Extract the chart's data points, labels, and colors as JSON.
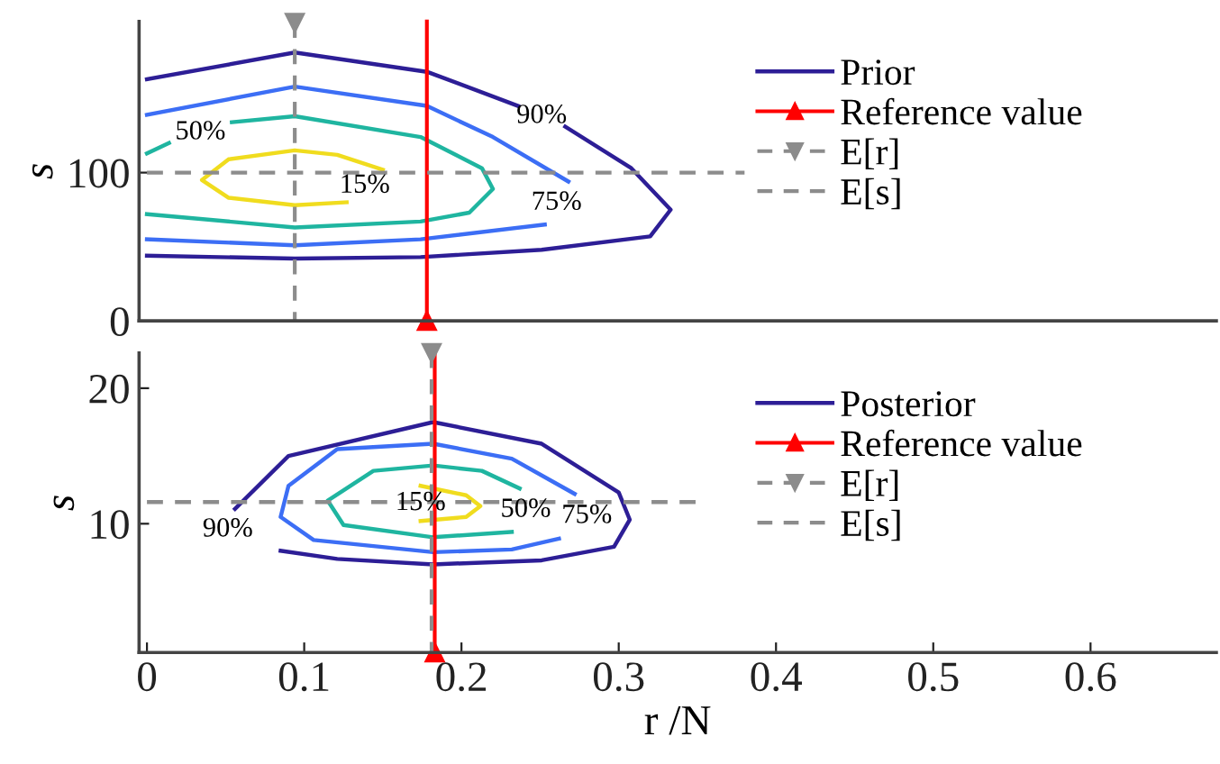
{
  "chart_data": [
    {
      "type": "line",
      "ylabel": "s",
      "xlim": [
        -0.005,
        0.68
      ],
      "ylim": [
        0,
        202
      ],
      "yticks": [
        0,
        100
      ],
      "tick_labels": "y",
      "grid": false,
      "legend": "right",
      "series": [
        {
          "name": "Prior",
          "color": "#2d1e96",
          "x": [
            0,
            0.094,
            0.178,
            0.236,
            null,
            0.266,
            0.308,
            0.333,
            0.32,
            0.251,
            0.174,
            0.094,
            0
          ],
          "values": [
            163,
            181,
            168,
            145,
            null,
            131,
            103,
            75,
            57,
            48,
            43,
            42,
            44
          ]
        },
        {
          "color": "#3c6ef5",
          "x": [
            0,
            0.094,
            0.178,
            0.22,
            0.268,
            null,
            0.253,
            0.174,
            0.094,
            0
          ],
          "values": [
            139,
            158,
            145,
            124,
            94,
            null,
            65,
            55,
            51,
            55
          ]
        },
        {
          "color": "#1fb5a0",
          "x": [
            0,
            0.014,
            null,
            0.054,
            0.094,
            0.174,
            0.213,
            0.22,
            0.205,
            0.174,
            0.094,
            0
          ],
          "values": [
            113,
            120,
            null,
            134,
            138,
            124,
            103,
            89,
            73,
            67,
            63,
            72
          ]
        },
        {
          "color": "#f0dc1e",
          "x": [
            0.15,
            0.121,
            0.094,
            0.052,
            0.035,
            0.052,
            0.094,
            0.127
          ],
          "values": [
            102,
            112,
            115,
            109,
            95,
            83,
            78,
            80
          ]
        },
        {
          "name": "Reference value",
          "color": "#ff0000",
          "marker": "triangle",
          "line_style": "solid",
          "x": [
            0.178,
            0.178
          ],
          "values": [
            0,
            202
          ]
        },
        {
          "name": "E[r]",
          "color": "#8c8c8c",
          "marker": "triangle_down",
          "line_style": "dashed",
          "x": [
            0.094,
            0.094
          ],
          "values": [
            201,
            0
          ]
        },
        {
          "name": "E[s]",
          "color": "#8c8c8c",
          "line_style": "dashed",
          "x": [
            0,
            0.38
          ],
          "values": [
            100,
            100
          ]
        }
      ],
      "annotations": [
        "90%",
        "75%",
        "50%",
        "15%"
      ]
    },
    {
      "type": "line",
      "xlabel": "r /N",
      "ylabel": "s",
      "xlim": [
        -0.005,
        0.68
      ],
      "ylim": [
        0.5,
        22.6
      ],
      "xticks": [
        0,
        0.1,
        0.2,
        0.3,
        0.4,
        0.5,
        0.6
      ],
      "yticks": [
        10,
        20
      ],
      "grid": false,
      "legend": "right",
      "series": [
        {
          "name": "Posterior",
          "color": "#2d1e96",
          "x": [
            0.056,
            0.09,
            0.182,
            0.251,
            0.3,
            0.307,
            0.297,
            0.251,
            0.182,
            0.121,
            0.085
          ],
          "values": [
            11.1,
            15.0,
            17.5,
            15.9,
            12.3,
            10.3,
            8.3,
            7.3,
            7.0,
            7.4,
            8.0
          ]
        },
        {
          "color": "#3c6ef5",
          "x": [
            0.272,
            0.232,
            0.182,
            0.121,
            0.09,
            0.085,
            0.106,
            0.182,
            0.232,
            0.262
          ],
          "values": [
            12.2,
            14.8,
            15.9,
            15.5,
            12.8,
            10.5,
            8.8,
            7.9,
            8.1,
            8.9
          ]
        },
        {
          "color": "#1fb5a0",
          "x": [
            0.237,
            0.213,
            0.182,
            0.144,
            0.115,
            0.125,
            0.182,
            0.232
          ],
          "values": [
            12.6,
            13.9,
            14.3,
            13.9,
            11.7,
            9.9,
            9.0,
            9.4
          ]
        },
        {
          "color": "#f0dc1e",
          "x": [
            0.174,
            0.203,
            0.212,
            0.203,
            0.174
          ],
          "values": [
            12.8,
            12.1,
            11.3,
            10.5,
            10.2
          ]
        },
        {
          "name": "Reference value",
          "color": "#ff0000",
          "marker": "triangle",
          "line_style": "solid",
          "x": [
            0.183,
            0.183
          ],
          "values": [
            0.5,
            22.6
          ]
        },
        {
          "name": "E[r]",
          "color": "#8c8c8c",
          "marker": "triangle_down",
          "line_style": "dashed",
          "x": [
            0.181,
            0.181
          ],
          "values": [
            22.6,
            0.5
          ]
        },
        {
          "name": "E[s]",
          "color": "#8c8c8c",
          "line_style": "dashed",
          "x": [
            0,
            0.352
          ],
          "values": [
            11.6,
            11.6
          ]
        }
      ],
      "annotations": [
        "90%",
        "75%",
        "50%",
        "15%"
      ]
    }
  ]
}
